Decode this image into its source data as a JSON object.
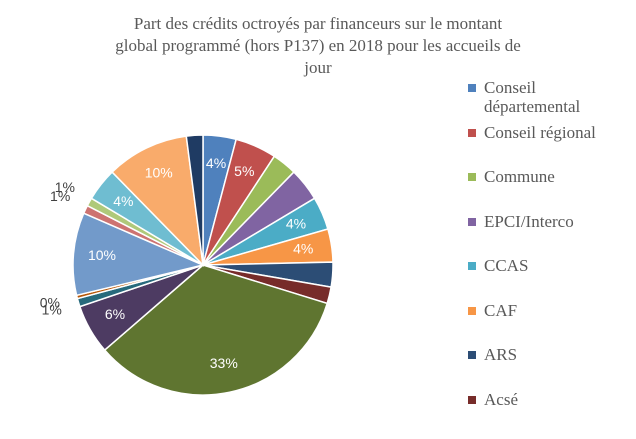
{
  "chart_data": {
    "type": "pie",
    "title": [
      "Part des crédits octroyés par financeurs sur le montant",
      "global programmé (hors P137) en 2018 pour les accueils de",
      "jour"
    ],
    "categories": [
      "Conseil départemental",
      "Conseil régional",
      "Commune",
      "EPCI/Interco",
      "CCAS",
      "CAF",
      "ARS",
      "Acsé",
      null,
      null,
      null,
      null,
      null,
      null,
      null,
      null,
      null,
      null
    ],
    "values": [
      4,
      5,
      3,
      4,
      4,
      4,
      3,
      2,
      33,
      6,
      1,
      0.4,
      10,
      1,
      1,
      4,
      10,
      2
    ],
    "value_labels": [
      "4%",
      "5%",
      null,
      null,
      "4%",
      "4%",
      null,
      null,
      "33%",
      "6%",
      "1%",
      "0%",
      "10%",
      "1%",
      "1%",
      "4%",
      "10%",
      null
    ],
    "colors": [
      "#4F81BD",
      "#C0504D",
      "#9BBB59",
      "#8064A2",
      "#4BACC6",
      "#F79646",
      "#2C4D75",
      "#772C2A",
      "#5F7530",
      "#4D3B62",
      "#276A7C",
      "#B65708",
      "#729ACA",
      "#CD7371",
      "#AFC97A",
      "#6FBDD1",
      "#F9AB6B",
      "#1F3B63"
    ],
    "legend": "right"
  }
}
